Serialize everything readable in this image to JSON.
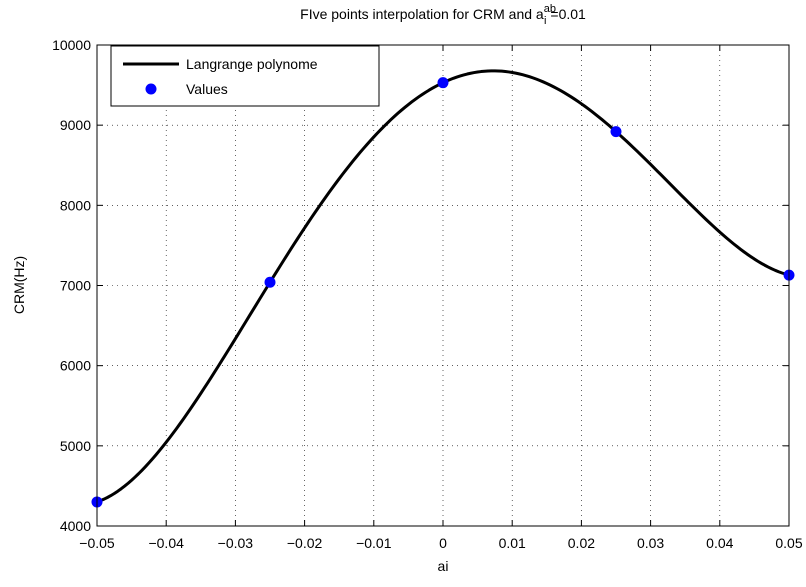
{
  "chart_data": {
    "type": "line",
    "title": "FIve points interpolation for CRM and a",
    "title_sup": "ab",
    "title_sub": "i",
    "title_suffix": "=0.01",
    "xlabel": "ai",
    "ylabel": "CRM(Hz)",
    "xlim": [
      -0.05,
      0.05
    ],
    "ylim": [
      4000,
      10000
    ],
    "x_ticks": [
      -0.05,
      -0.04,
      -0.03,
      -0.02,
      -0.01,
      0,
      0.01,
      0.02,
      0.03,
      0.04,
      0.05
    ],
    "x_tick_labels": [
      "−0.05",
      "−0.04",
      "−0.03",
      "−0.02",
      "−0.01",
      "0",
      "0.01",
      "0.02",
      "0.03",
      "0.04",
      "0.05"
    ],
    "y_ticks": [
      4000,
      5000,
      6000,
      7000,
      8000,
      9000,
      10000
    ],
    "y_tick_labels": [
      "4000",
      "5000",
      "6000",
      "7000",
      "8000",
      "9000",
      "10000"
    ],
    "grid": true,
    "legend_position": "top-left",
    "series": [
      {
        "name": "Langrange polynome",
        "kind": "line",
        "color": "#000000",
        "interpolate_from": "Values"
      },
      {
        "name": "Values",
        "kind": "markers",
        "color": "#0000ff",
        "x": [
          -0.05,
          -0.025,
          0,
          0.025,
          0.05
        ],
        "y": [
          4300,
          7040,
          9530,
          8920,
          7130
        ]
      }
    ]
  }
}
